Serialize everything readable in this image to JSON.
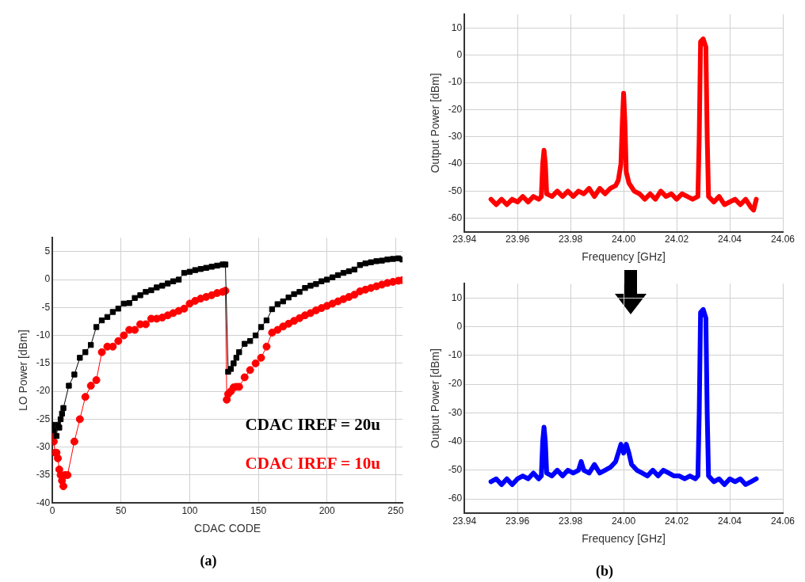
{
  "chart_data": [
    {
      "type": "line",
      "title": "(a)",
      "xlabel": "CDAC CODE",
      "ylabel": "LO Power [dBm]",
      "xlim": [
        0,
        255
      ],
      "xticks": [
        0,
        50,
        100,
        150,
        200,
        250
      ],
      "ylim": [
        -40,
        7.5
      ],
      "yticks": [
        -40,
        -35,
        -30,
        -25,
        -20,
        -15,
        -10,
        -5,
        0,
        5
      ],
      "grid": true,
      "legend": false,
      "series": [
        {
          "name": "CDAC IREF = 20u",
          "color": "#000000",
          "marker": "square",
          "x": [
            0,
            1,
            3,
            4,
            5,
            6,
            7,
            8,
            12,
            16,
            20,
            24,
            28,
            32,
            36,
            40,
            44,
            48,
            52,
            56,
            60,
            64,
            68,
            72,
            76,
            80,
            84,
            88,
            92,
            96,
            100,
            104,
            108,
            112,
            116,
            120,
            124,
            126,
            128,
            130,
            132,
            134,
            136,
            140,
            144,
            148,
            152,
            156,
            160,
            164,
            168,
            172,
            176,
            180,
            184,
            188,
            192,
            196,
            200,
            204,
            208,
            212,
            216,
            220,
            224,
            228,
            232,
            236,
            240,
            244,
            248,
            252,
            255
          ],
          "values": [
            -26,
            -27,
            -28,
            -26,
            -26.5,
            -25,
            -24,
            -23,
            -19,
            -17,
            -14,
            -13,
            -11.7,
            -8.5,
            -7.3,
            -6.7,
            -5.8,
            -5.2,
            -4.3,
            -4.2,
            -3.3,
            -2.8,
            -2.2,
            -1.9,
            -1.4,
            -1.1,
            -0.7,
            -0.3,
            0,
            1.2,
            1.4,
            1.7,
            1.9,
            2.1,
            2.3,
            2.5,
            2.7,
            2.7,
            -16.5,
            -16,
            -15,
            -14,
            -13,
            -11.5,
            -11,
            -10,
            -8.5,
            -7.3,
            -5.3,
            -4.4,
            -3.9,
            -3.2,
            -2.6,
            -2.2,
            -1.5,
            -1.1,
            -0.8,
            -0.3,
            0,
            0.4,
            0.8,
            1.2,
            1.5,
            1.8,
            2.6,
            2.9,
            3.1,
            3.3,
            3.4,
            3.6,
            3.7,
            3.8,
            3.6
          ]
        },
        {
          "name": "CDAC IREF = 10u",
          "color": "#ff0000",
          "marker": "circle",
          "x": [
            0,
            1,
            2,
            3,
            4,
            5,
            6,
            7,
            8,
            9,
            11,
            16,
            20,
            24,
            28,
            32,
            36,
            40,
            44,
            48,
            52,
            56,
            60,
            64,
            68,
            72,
            76,
            80,
            84,
            88,
            92,
            96,
            100,
            104,
            108,
            112,
            116,
            120,
            124,
            126,
            127,
            128,
            130,
            132,
            134,
            136,
            140,
            144,
            148,
            152,
            156,
            160,
            164,
            168,
            172,
            176,
            180,
            184,
            188,
            192,
            196,
            200,
            204,
            208,
            212,
            216,
            220,
            224,
            228,
            232,
            236,
            240,
            244,
            248,
            252,
            255
          ],
          "values": [
            -28,
            -29,
            -31,
            -31,
            -32,
            -34,
            -35,
            -36,
            -37,
            -35,
            -35,
            -29,
            -25,
            -21,
            -19,
            -18,
            -13,
            -12,
            -12,
            -11,
            -10,
            -9,
            -9,
            -8,
            -8,
            -7,
            -7,
            -6.8,
            -6.4,
            -6,
            -5.6,
            -5.2,
            -4.3,
            -3.8,
            -3.4,
            -3.1,
            -2.8,
            -2.4,
            -2.2,
            -2,
            -21.5,
            -20.5,
            -20,
            -19.3,
            -19.2,
            -19.2,
            -17.5,
            -16.2,
            -15,
            -14,
            -12,
            -9.5,
            -9,
            -8.4,
            -7.9,
            -7.4,
            -6.9,
            -6.4,
            -6,
            -5.5,
            -5.1,
            -4.7,
            -4.3,
            -3.9,
            -3.5,
            -3.1,
            -2.7,
            -2.1,
            -1.8,
            -1.5,
            -1.2,
            -0.9,
            -0.6,
            -0.4,
            -0.2,
            -0.1
          ]
        }
      ]
    },
    {
      "type": "line",
      "xlabel": "Frequency [GHz]",
      "ylabel": "Output Power [dBm]",
      "xlim": [
        23.94,
        24.06
      ],
      "xticks": [
        23.94,
        23.96,
        23.98,
        {
          "value": 24,
          "label": "24.00"
        },
        24.02,
        24.04,
        24.06
      ],
      "ylim": [
        -65,
        15
      ],
      "yticks": [
        -60,
        -50,
        -40,
        -30,
        -20,
        -10,
        0,
        10
      ],
      "grid": true,
      "legend": false,
      "marker": "none",
      "series": [
        {
          "color": "#ff0000",
          "x": [
            23.95,
            23.952,
            23.954,
            23.956,
            23.958,
            23.96,
            23.962,
            23.964,
            23.966,
            23.968,
            23.969,
            23.9695,
            23.97,
            23.9705,
            23.971,
            23.973,
            23.975,
            23.977,
            23.979,
            23.981,
            23.983,
            23.985,
            23.987,
            23.989,
            23.991,
            23.993,
            23.995,
            23.997,
            23.998,
            23.999,
            23.9995,
            24,
            24.0005,
            24.001,
            24.002,
            24.004,
            24.006,
            24.008,
            24.01,
            24.012,
            24.014,
            24.016,
            24.018,
            24.02,
            24.022,
            24.024,
            24.026,
            24.028,
            24.0285,
            24.029,
            24.03,
            24.031,
            24.0315,
            24.032,
            24.034,
            24.036,
            24.038,
            24.04,
            24.042,
            24.044,
            24.046,
            24.048,
            24.049,
            24.05
          ],
          "values": [
            -53,
            -55,
            -53,
            -55,
            -53,
            -54,
            -52,
            -54,
            -52,
            -53,
            -52,
            -40,
            -35,
            -40,
            -51,
            -52,
            -50,
            -52,
            -50,
            -52,
            -50,
            -51,
            -49,
            -52,
            -49,
            -51,
            -49,
            -48,
            -46,
            -40,
            -25,
            -14,
            -25,
            -43,
            -47,
            -50,
            -51,
            -53,
            -51,
            -53,
            -50,
            -52,
            -51,
            -53,
            -51,
            -52,
            -53,
            -52,
            -30,
            5,
            6,
            3,
            -30,
            -52,
            -54,
            -52,
            -55,
            -54,
            -53,
            -55,
            -53,
            -56,
            -57,
            -53
          ]
        }
      ]
    },
    {
      "type": "line",
      "title": "(b)",
      "xlabel": "Frequency [GHz]",
      "ylabel": "Output Power [dBm]",
      "xlim": [
        23.94,
        24.06
      ],
      "xticks": [
        23.94,
        23.96,
        23.98,
        {
          "value": 24,
          "label": "24.00"
        },
        24.02,
        24.04,
        24.06
      ],
      "ylim": [
        -65,
        15
      ],
      "yticks": [
        -60,
        -50,
        -40,
        -30,
        -20,
        -10,
        0,
        10
      ],
      "grid": true,
      "legend": false,
      "marker": "none",
      "series": [
        {
          "color": "#0000ff",
          "x": [
            23.95,
            23.952,
            23.954,
            23.956,
            23.958,
            23.96,
            23.962,
            23.964,
            23.966,
            23.968,
            23.969,
            23.9695,
            23.97,
            23.9705,
            23.971,
            23.973,
            23.975,
            23.977,
            23.979,
            23.981,
            23.983,
            23.984,
            23.985,
            23.987,
            23.989,
            23.991,
            23.993,
            23.995,
            23.997,
            23.998,
            23.999,
            24,
            24.001,
            24.002,
            24.003,
            24.005,
            24.007,
            24.009,
            24.011,
            24.013,
            24.015,
            24.017,
            24.019,
            24.021,
            24.023,
            24.025,
            24.027,
            24.028,
            24.0285,
            24.029,
            24.03,
            24.031,
            24.0315,
            24.032,
            24.034,
            24.036,
            24.038,
            24.04,
            24.042,
            24.044,
            24.046,
            24.048,
            24.05
          ],
          "values": [
            -54,
            -53,
            -55,
            -53,
            -55,
            -53,
            -52,
            -53,
            -51,
            -53,
            -52,
            -40,
            -35,
            -40,
            -51,
            -52,
            -50,
            -52,
            -50,
            -51,
            -50,
            -47,
            -50,
            -51,
            -48,
            -51,
            -50,
            -49,
            -47,
            -44,
            -41,
            -44,
            -41,
            -44,
            -48,
            -50,
            -51,
            -52,
            -50,
            -52,
            -50,
            -51,
            -52,
            -52,
            -53,
            -52,
            -53,
            -52,
            -30,
            5,
            6,
            3,
            -30,
            -52,
            -54,
            -53,
            -55,
            -53,
            -54,
            -53,
            -55,
            -54,
            -53
          ]
        }
      ]
    }
  ]
}
